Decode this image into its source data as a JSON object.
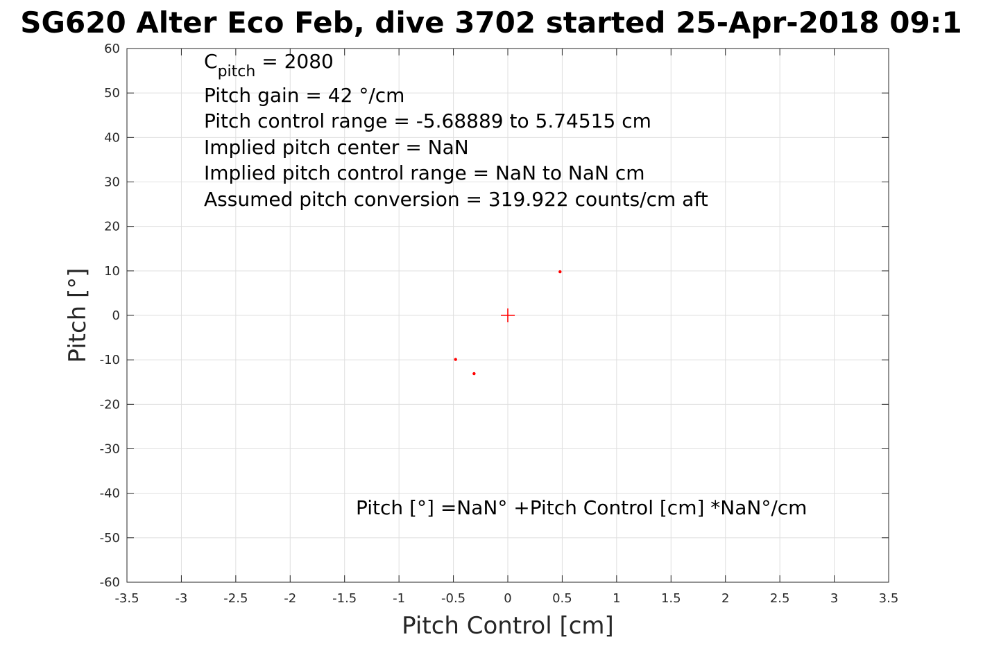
{
  "chart_data": {
    "type": "scatter",
    "title": "SG620 Alter Eco Feb, dive 3702 started 25-Apr-2018 09:1",
    "xlabel": "Pitch Control [cm]",
    "ylabel": "Pitch [°]",
    "xlim": [
      -3.5,
      3.5
    ],
    "ylim": [
      -60,
      60
    ],
    "xticks": [
      -3.5,
      -3,
      -2.5,
      -2,
      -1.5,
      -1,
      -0.5,
      0,
      0.5,
      1,
      1.5,
      2,
      2.5,
      3,
      3.5
    ],
    "xtick_labels": [
      "-3.5",
      "-3",
      "-2.5",
      "-2",
      "-1.5",
      "-1",
      "-0.5",
      "0",
      "0.5",
      "1",
      "1.5",
      "2",
      "2.5",
      "3",
      "3.5"
    ],
    "yticks": [
      60,
      50,
      40,
      30,
      20,
      10,
      0,
      -10,
      -20,
      -30,
      -40,
      -50,
      -60
    ],
    "ytick_labels": [
      "60",
      "50",
      "40",
      "30",
      "20",
      "10",
      "0",
      "-10",
      "-20",
      "-30",
      "-40",
      "-50",
      "-60"
    ],
    "grid": true,
    "series": [
      {
        "marker": "dot",
        "color": "#ff0000",
        "points": [
          [
            0.48,
            9.8
          ],
          [
            -0.48,
            -9.9
          ],
          [
            -0.31,
            -13.1
          ]
        ]
      },
      {
        "marker": "plus",
        "color": "#ff0000",
        "points": [
          [
            0,
            0
          ]
        ]
      }
    ],
    "annotations": {
      "cpitch_main": "C",
      "cpitch_sub": "pitch",
      "cpitch_value": " = 2080",
      "line2": "Pitch gain = 42 °/cm",
      "line3": "Pitch control range = -5.68889 to 5.74515 cm",
      "line4": "Implied pitch center = NaN",
      "line5": "Implied pitch control range = NaN to NaN cm",
      "line6": "Assumed pitch conversion = 319.922 counts/cm aft",
      "fit_equation": "Pitch [°] =NaN° +Pitch Control [cm] *NaN°/cm"
    }
  }
}
